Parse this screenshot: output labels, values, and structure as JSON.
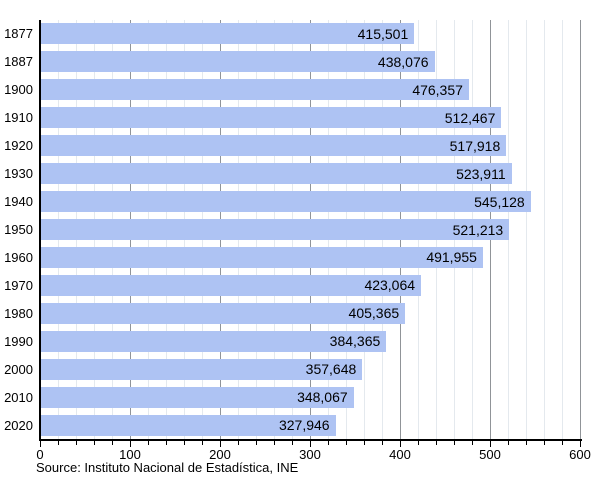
{
  "chart_data": {
    "type": "bar",
    "orientation": "horizontal",
    "title": "",
    "xlabel": "",
    "ylabel": "",
    "categories": [
      "1877",
      "1887",
      "1900",
      "1910",
      "1920",
      "1930",
      "1940",
      "1950",
      "1960",
      "1970",
      "1980",
      "1990",
      "2000",
      "2010",
      "2020"
    ],
    "values": [
      415501,
      438076,
      476357,
      512467,
      517918,
      523911,
      545128,
      521213,
      491955,
      423064,
      405365,
      384365,
      357648,
      348067,
      327946
    ],
    "value_labels": [
      "415,501",
      "438,076",
      "476,357",
      "512,467",
      "517,918",
      "523,911",
      "545,128",
      "521,213",
      "491,955",
      "423,064",
      "405,365",
      "384,365",
      "357,648",
      "348,067",
      "327,946"
    ],
    "xlim": [
      0,
      600
    ],
    "x_axis_scale": "thousands",
    "x_tick_labels": [
      "0",
      "100",
      "200",
      "300",
      "400",
      "500",
      "600"
    ],
    "x_major_tick_interval": 100,
    "x_minor_tick_interval": 20,
    "grid": true,
    "legend": false
  },
  "source_line": "Source: Instituto Nacional de Estadística, INE",
  "colors": {
    "bar_fill": "#aec3f3",
    "grid_minor": "#e4e9ee",
    "grid_major": "#909498",
    "axis": "#000000",
    "text": "#000000",
    "background": "#ffffff"
  }
}
